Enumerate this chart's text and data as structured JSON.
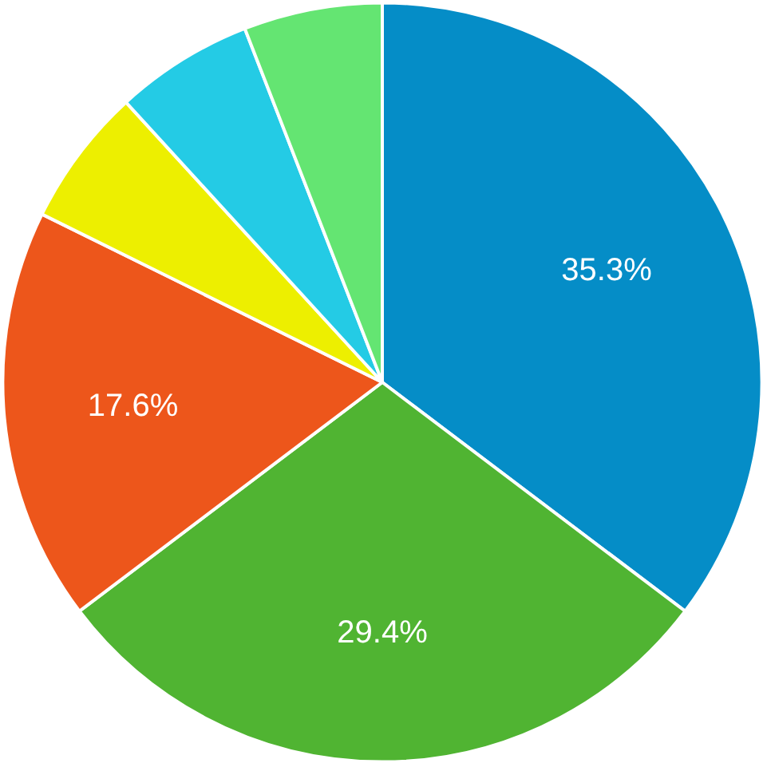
{
  "chart_data": {
    "type": "pie",
    "categories": [
      null,
      null,
      null,
      null,
      null,
      null
    ],
    "values": [
      35.3,
      29.4,
      17.6,
      5.9,
      5.9,
      5.9
    ],
    "colors": [
      "#058dc7",
      "#50b432",
      "#ed561b",
      "#edef00",
      "#24cbe5",
      "#64e572"
    ],
    "value_labels": [
      "35.3%",
      "29.4%",
      "17.6%",
      null,
      null,
      null
    ]
  }
}
